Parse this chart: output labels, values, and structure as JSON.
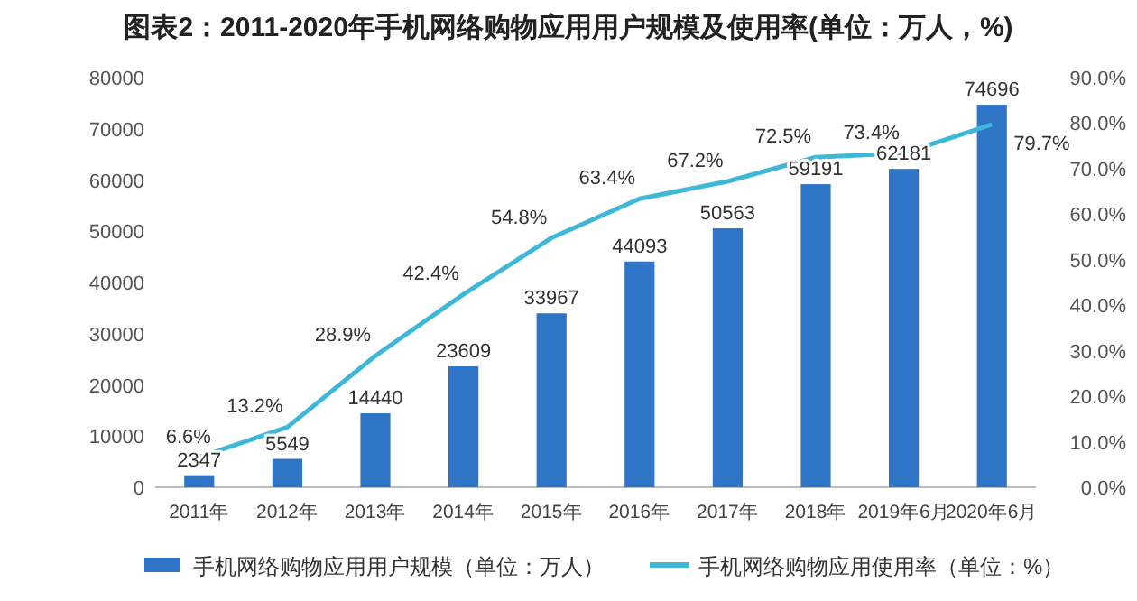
{
  "chart_data": {
    "type": "bar",
    "title": "图表2：2011-2020年手机网络购物应用用户规模及使用率(单位：万人，%)",
    "categories": [
      "2011年",
      "2012年",
      "2013年",
      "2014年",
      "2015年",
      "2016年",
      "2017年",
      "2018年",
      "2019年6月",
      "2020年6月"
    ],
    "series": [
      {
        "name": "手机网络购物应用用户规模（单位：万人）",
        "color": "#2e75c8",
        "values": [
          2347,
          5549,
          14440,
          23609,
          33967,
          44093,
          50563,
          59191,
          62181,
          74696
        ]
      },
      {
        "name": "手机网络购物应用使用率（单位：%）",
        "type": "line",
        "axis": "y2",
        "color": "#3fb8d8",
        "values": [
          6.6,
          13.2,
          28.9,
          42.4,
          54.8,
          63.4,
          67.2,
          72.5,
          73.4,
          79.7
        ],
        "value_labels": [
          "6.6%",
          "13.2%",
          "28.9%",
          "42.4%",
          "54.8%",
          "63.4%",
          "67.2%",
          "72.5%",
          "73.4%",
          "79.7%"
        ]
      }
    ],
    "ylim": [
      0,
      80000
    ],
    "yticks": [
      0,
      10000,
      20000,
      30000,
      40000,
      50000,
      60000,
      70000,
      80000
    ],
    "y2lim": [
      0,
      90
    ],
    "y2ticks": [
      {
        "value": 0,
        "label": "0.0%"
      },
      {
        "value": 10,
        "label": "10.0%"
      },
      {
        "value": 20,
        "label": "20.0%"
      },
      {
        "value": 30,
        "label": "30.0%"
      },
      {
        "value": 40,
        "label": "40.0%"
      },
      {
        "value": 50,
        "label": "50.0%"
      },
      {
        "value": 60,
        "label": "60.0%"
      },
      {
        "value": 70,
        "label": "70.0%"
      },
      {
        "value": 80,
        "label": "80.0%"
      },
      {
        "value": 90,
        "label": "90.0%"
      }
    ],
    "data_labels": true,
    "legend": "bottom",
    "grid": false,
    "marker": "none",
    "line_style": "solid"
  }
}
